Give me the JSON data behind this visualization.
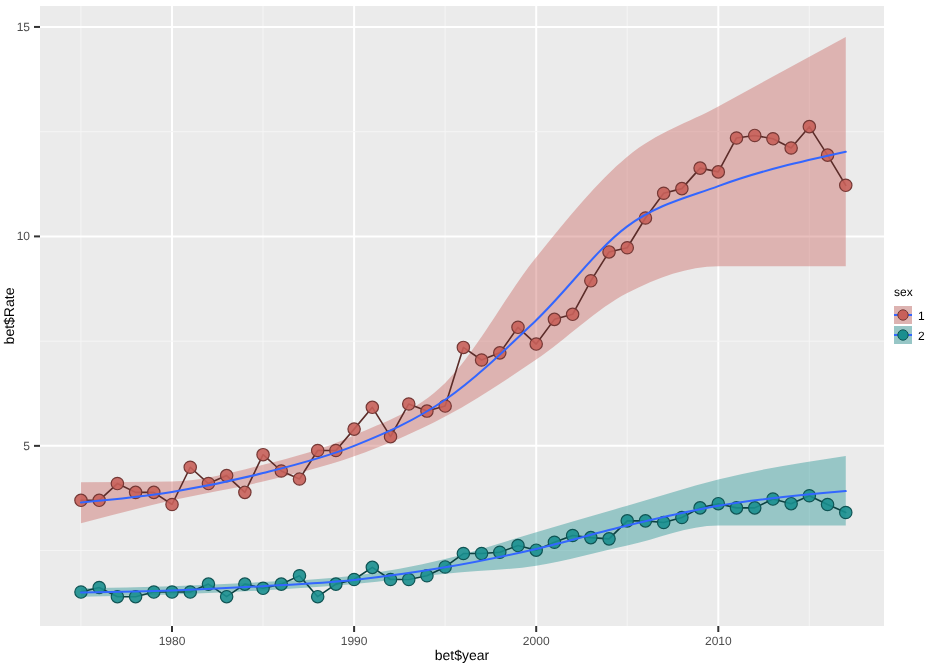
{
  "chart_data": {
    "type": "line",
    "xlabel": "bet$year",
    "ylabel": "bet$Rate",
    "legend_title": "sex",
    "legend": "right",
    "grid": true,
    "marker": "circle",
    "line_style": "solid",
    "x": [
      1975,
      1976,
      1977,
      1978,
      1979,
      1980,
      1981,
      1982,
      1983,
      1984,
      1985,
      1986,
      1987,
      1988,
      1989,
      1990,
      1991,
      1992,
      1993,
      1994,
      1995,
      1996,
      1997,
      1998,
      1999,
      2000,
      2001,
      2002,
      2003,
      2004,
      2005,
      2006,
      2007,
      2008,
      2009,
      2010,
      2011,
      2012,
      2013,
      2014,
      2015,
      2016,
      2017
    ],
    "xlim": [
      1972.75,
      2019.1
    ],
    "xticks": [
      1980,
      1990,
      2000,
      2010
    ],
    "ylim": [
      0.7,
      15.5
    ],
    "yticks": [
      5,
      10,
      15
    ],
    "series": [
      {
        "name": "1",
        "color": "#c8605a",
        "values": [
          3.7,
          3.7,
          4.1,
          3.89,
          3.89,
          3.6,
          4.49,
          4.1,
          4.29,
          3.89,
          4.79,
          4.4,
          4.21,
          4.89,
          4.89,
          5.4,
          5.92,
          5.22,
          6.0,
          5.83,
          5.95,
          7.35,
          7.05,
          7.22,
          7.83,
          7.43,
          8.02,
          8.14,
          8.94,
          9.63,
          9.73,
          10.44,
          11.03,
          11.14,
          11.63,
          11.54,
          12.35,
          12.41,
          12.33,
          12.11,
          12.62,
          11.94,
          11.22
        ]
      },
      {
        "color": "#3366ff",
        "x": [
          1975,
          1980,
          1985,
          1990,
          1995,
          2000,
          2005,
          2010,
          2017
        ],
        "values": [
          3.65,
          3.9,
          4.35,
          5.0,
          6.1,
          8.0,
          10.24,
          11.2,
          12.02
        ],
        "lower": [
          3.15,
          3.7,
          4.15,
          4.75,
          5.7,
          7.06,
          8.65,
          9.29,
          9.29
        ],
        "upper": [
          4.13,
          4.15,
          4.55,
          5.25,
          6.5,
          9.5,
          11.9,
          13.1,
          14.76
        ],
        "marker": "none"
      },
      {
        "name": "2",
        "color": "#1a8f8f",
        "values": [
          1.51,
          1.62,
          1.4,
          1.4,
          1.51,
          1.51,
          1.51,
          1.7,
          1.4,
          1.7,
          1.6,
          1.7,
          1.9,
          1.4,
          1.7,
          1.81,
          2.1,
          1.81,
          1.81,
          1.9,
          2.11,
          2.43,
          2.43,
          2.46,
          2.62,
          2.51,
          2.7,
          2.86,
          2.81,
          2.78,
          3.21,
          3.21,
          3.17,
          3.29,
          3.52,
          3.62,
          3.52,
          3.52,
          3.73,
          3.62,
          3.81,
          3.6,
          3.41
        ]
      },
      {
        "color": "#3366ff",
        "x": [
          1975,
          1980,
          1985,
          1990,
          1995,
          2000,
          2005,
          2010,
          2017
        ],
        "values": [
          1.5,
          1.55,
          1.65,
          1.8,
          2.1,
          2.54,
          3.1,
          3.57,
          3.92
        ],
        "lower": [
          1.4,
          1.45,
          1.55,
          1.7,
          1.95,
          2.14,
          2.62,
          3.1,
          3.1
        ],
        "upper": [
          1.6,
          1.65,
          1.75,
          1.9,
          2.3,
          2.94,
          3.57,
          4.2,
          4.76
        ],
        "marker": "none"
      }
    ]
  }
}
